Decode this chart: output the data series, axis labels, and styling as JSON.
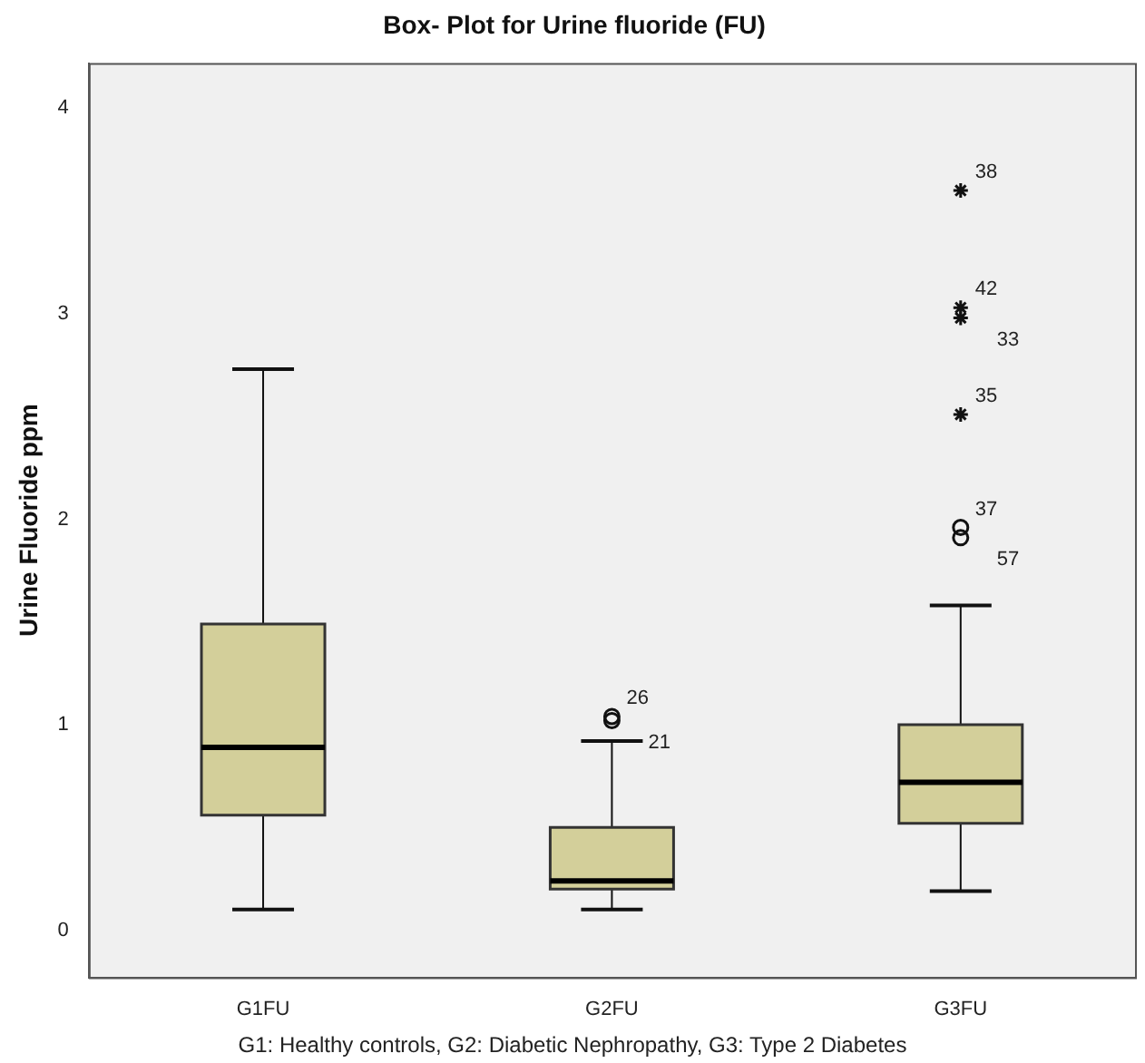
{
  "chart_data": {
    "type": "box",
    "title": "Box- Plot for Urine fluoride (FU)",
    "ylabel": "Urine Fluoride ppm",
    "categories": [
      "G1FU",
      "G2FU",
      "G3FU"
    ],
    "color": "#d3cf9a",
    "boxes": [
      {
        "low": 0.1,
        "q1": 0.56,
        "median": 0.89,
        "q3": 1.49,
        "high": 2.73
      },
      {
        "low": 0.1,
        "q1": 0.2,
        "median": 0.24,
        "q3": 0.5,
        "high": 0.92
      },
      {
        "low": 0.19,
        "q1": 0.52,
        "median": 0.72,
        "q3": 1.0,
        "high": 1.58
      }
    ],
    "series": [
      {
        "type": "scatter",
        "marker": "circle",
        "color": "#111111",
        "x": [
          "G2FU",
          "G2FU",
          "G3FU",
          "G3FU"
        ],
        "values": [
          1.04,
          1.02,
          1.96,
          1.91
        ]
      },
      {
        "type": "scatter",
        "marker": "cross",
        "color": "#111111",
        "x": [
          "G3FU",
          "G3FU",
          "G3FU",
          "G3FU"
        ],
        "values": [
          3.6,
          3.03,
          2.98,
          2.51
        ]
      }
    ],
    "ylim": [
      -0.23,
      4.22
    ],
    "yticks": [
      0,
      1,
      2,
      3,
      4
    ],
    "grid": false,
    "legend": false,
    "annotations": [
      {
        "text": "26",
        "x": "G2FU",
        "y": 1.04
      },
      {
        "text": "21",
        "x": "G2FU",
        "y": 1.02
      },
      {
        "text": "38",
        "x": "G3FU",
        "y": 3.6
      },
      {
        "text": "42",
        "x": "G3FU",
        "y": 3.03
      },
      {
        "text": "33",
        "x": "G3FU",
        "y": 2.98
      },
      {
        "text": "35",
        "x": "G3FU",
        "y": 2.51
      },
      {
        "text": "37",
        "x": "G3FU",
        "y": 1.96
      },
      {
        "text": "57",
        "x": "G3FU",
        "y": 1.91
      },
      "G1: Healthy controls, G2: Diabetic Nephropathy, G3: Type 2 Diabetes"
    ]
  }
}
